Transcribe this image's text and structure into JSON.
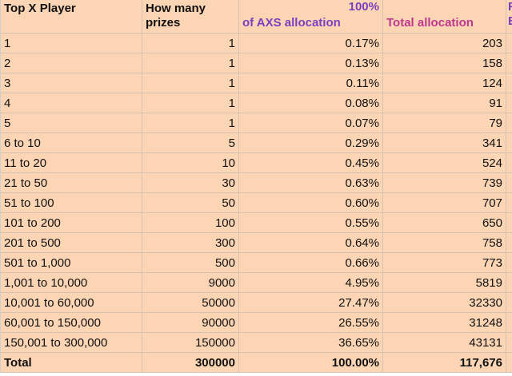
{
  "header": {
    "col1": "Top X Player",
    "col2": "How many prizes",
    "col3_percent": "100%",
    "col3_label": "of AXS allocation",
    "col4": "Total allocation",
    "col5_top": "F",
    "col5_bottom": "E"
  },
  "rows": [
    {
      "player": "1",
      "prizes": "1",
      "pct": "0.17%",
      "alloc": "203"
    },
    {
      "player": "2",
      "prizes": "1",
      "pct": "0.13%",
      "alloc": "158"
    },
    {
      "player": "3",
      "prizes": "1",
      "pct": "0.11%",
      "alloc": "124"
    },
    {
      "player": "4",
      "prizes": "1",
      "pct": "0.08%",
      "alloc": "91"
    },
    {
      "player": "5",
      "prizes": "1",
      "pct": "0.07%",
      "alloc": "79"
    },
    {
      "player": "6 to 10",
      "prizes": "5",
      "pct": "0.29%",
      "alloc": "341"
    },
    {
      "player": "11 to 20",
      "prizes": "10",
      "pct": "0.45%",
      "alloc": "524"
    },
    {
      "player": "21 to 50",
      "prizes": "30",
      "pct": "0.63%",
      "alloc": "739"
    },
    {
      "player": "51 to 100",
      "prizes": "50",
      "pct": "0.60%",
      "alloc": "707"
    },
    {
      "player": "101 to 200",
      "prizes": "100",
      "pct": "0.55%",
      "alloc": "650"
    },
    {
      "player": "201 to 500",
      "prizes": "300",
      "pct": "0.64%",
      "alloc": "758"
    },
    {
      "player": "501 to 1,000",
      "prizes": "500",
      "pct": "0.66%",
      "alloc": "773"
    },
    {
      "player": "1,001 to 10,000",
      "prizes": "9000",
      "pct": "4.95%",
      "alloc": "5819"
    },
    {
      "player": "10,001 to 60,000",
      "prizes": "50000",
      "pct": "27.47%",
      "alloc": "32330"
    },
    {
      "player": "60,001 to 150,000",
      "prizes": "90000",
      "pct": "26.55%",
      "alloc": "31248"
    },
    {
      "player": "150,001 to 300,000",
      "prizes": "150000",
      "pct": "36.65%",
      "alloc": "43131"
    }
  ],
  "total": {
    "player": "Total",
    "prizes": "300000",
    "pct": "100.00%",
    "alloc": "117,676"
  },
  "colors": {
    "cell_fill": "#fcd5b4",
    "purple_header": "#7b3fbf",
    "magenta_header": "#c0378f"
  }
}
